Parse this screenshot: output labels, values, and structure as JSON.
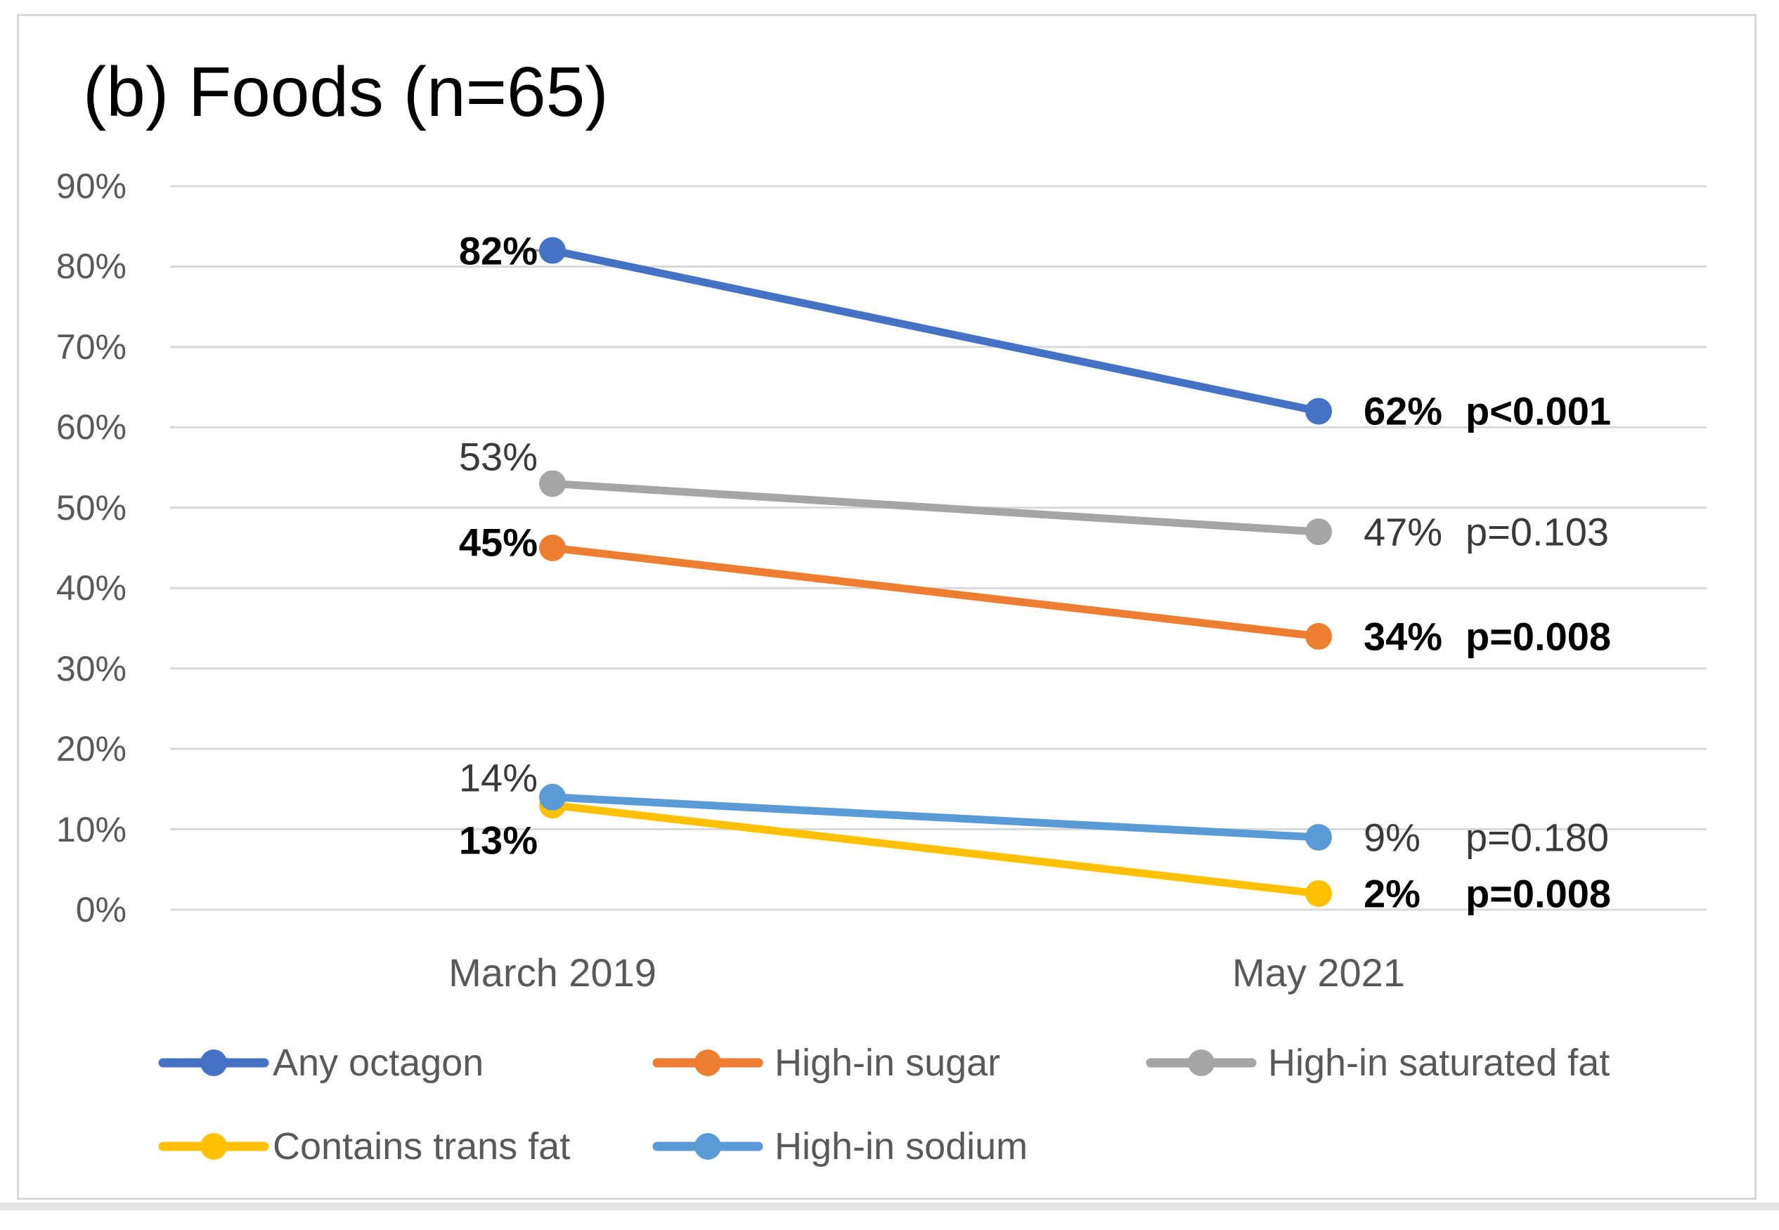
{
  "figure": {
    "title": "(b) Foods (n=65)"
  },
  "chart_data": {
    "type": "line",
    "title": "(b) Foods (n=65)",
    "categories": [
      "March 2019",
      "May 2021"
    ],
    "y_axis": {
      "min": 0,
      "max": 90,
      "tick_step": 10,
      "ticks": [
        "0%",
        "10%",
        "20%",
        "30%",
        "40%",
        "50%",
        "60%",
        "70%",
        "80%",
        "90%"
      ],
      "grid": true
    },
    "legend_position": "bottom",
    "gridline_color": "#D9D9D9",
    "series": [
      {
        "name": "Any octagon",
        "color": "#4472C4",
        "values": [
          82,
          62
        ],
        "value_labels": [
          "82%",
          "62%"
        ],
        "p_label": "p<0.001",
        "significant": true
      },
      {
        "name": "High-in sugar",
        "color": "#ED7D31",
        "values": [
          45,
          34
        ],
        "value_labels": [
          "45%",
          "34%"
        ],
        "p_label": "p=0.008",
        "significant": true
      },
      {
        "name": "High-in saturated fat",
        "color": "#A5A5A5",
        "values": [
          53,
          47
        ],
        "value_labels": [
          "53%",
          "47%"
        ],
        "p_label": "p=0.103",
        "significant": false
      },
      {
        "name": "Contains trans fat",
        "color": "#FFC000",
        "values": [
          13,
          2
        ],
        "value_labels": [
          "13%",
          "2%"
        ],
        "p_label": "p=0.008",
        "significant": true
      },
      {
        "name": "High-in sodium",
        "color": "#5B9BD5",
        "values": [
          14,
          9
        ],
        "value_labels": [
          "14%",
          "9%"
        ],
        "p_label": "p=0.180",
        "significant": false
      }
    ]
  }
}
